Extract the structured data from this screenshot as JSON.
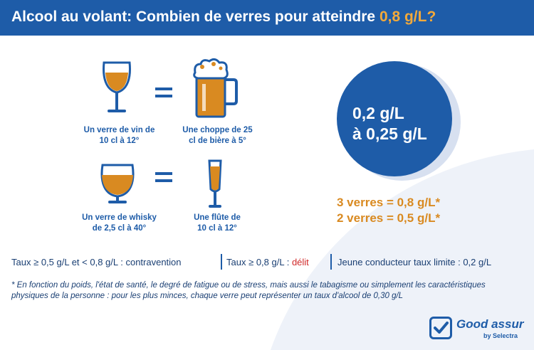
{
  "header": {
    "title_main": "Alcool au volant: Combien de verres pour atteindre ",
    "title_accent": "0,8 g/L?"
  },
  "drinks": {
    "wine": "Un verre de vin de\n10 cl à 12°",
    "beer": "Une choppe de 25\ncl de bière à 5°",
    "whisky": "Un verre de whisky\nde 2,5 cl à 40°",
    "flute": "Une flûte de\n10 cl à 12°"
  },
  "circle": {
    "text": "0,2 g/L\nà 0,25 g/L"
  },
  "verres": {
    "line1": "3 verres = 0,8 g/L*",
    "line2": "2 verres = 0,5 g/L*"
  },
  "taux": {
    "contravention": "Taux ≥ 0,5 g/L et < 0,8 g/L : contravention",
    "delit_prefix": "Taux ≥ 0,8 g/L : ",
    "delit": "délit",
    "jeune": "Jeune conducteur taux limite : 0,2 g/L"
  },
  "footnote": "* En fonction du poids, l'état de santé, le degré de fatigue ou de stress, mais aussi le tabagisme ou simplement les caractéristiques physiques de la personne : pour les plus minces, chaque verre peut représenter un taux d'alcool de 0,30 g/L",
  "logo": {
    "main": "Good assur",
    "sub": "by Selectra"
  },
  "colors": {
    "primary_blue": "#1e5ca8",
    "accent_orange": "#f2a93a",
    "beer_orange": "#d98a21",
    "delit_red": "#d12a2a"
  },
  "icons": [
    "wine-glass-icon",
    "beer-mug-icon",
    "whisky-glass-icon",
    "champagne-flute-icon",
    "shield-check-icon"
  ]
}
